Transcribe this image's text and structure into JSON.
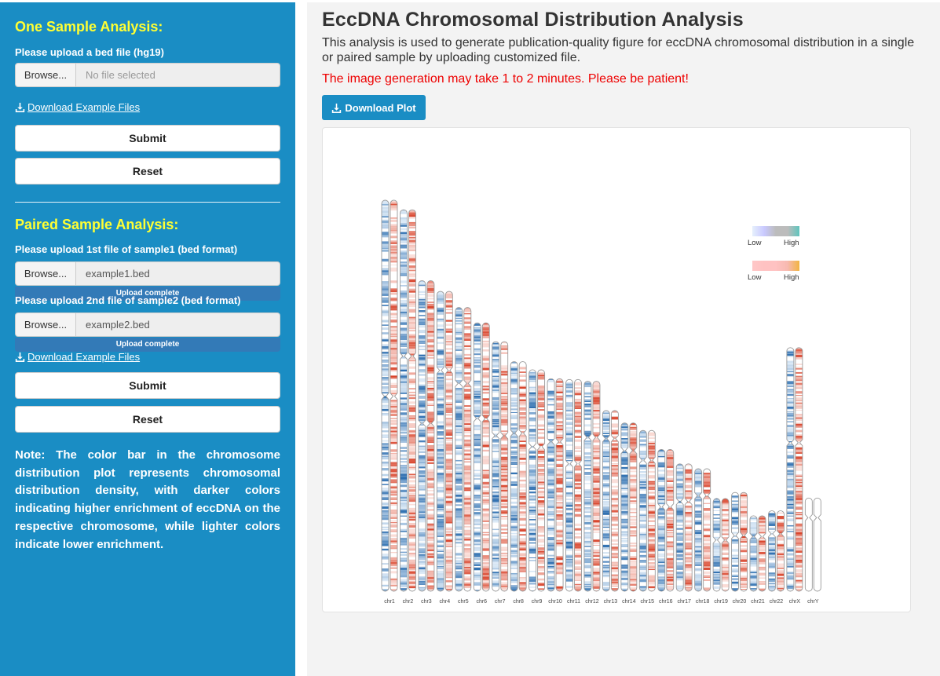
{
  "sidebar": {
    "one_sample_title": "One Sample Analysis:",
    "upload_bed_label": "Please upload a bed file (hg19)",
    "browse_label": "Browse...",
    "no_file_placeholder": "No file selected",
    "download_example_label": "Download Example Files",
    "submit_label": "Submit",
    "reset_label": "Reset",
    "paired_title": "Paired Sample Analysis:",
    "upload_file1_label": "Please upload 1st file of sample1 (bed format)",
    "file1_name": "example1.bed",
    "upload_status": "Upload complete",
    "upload_file2_label": "Please upload 2nd file of sample2 (bed format)",
    "file2_name": "example2.bed",
    "note": "Note: The color bar in the chromosome distribution plot represents chromosomal distribution density, with darker colors indicating higher enrichment of eccDNA on the respective chromosome, while lighter colors indicate lower enrichment."
  },
  "main": {
    "title": "EccDNA Chromosomal Distribution Analysis",
    "description": "This analysis is used to generate publication-quality figure for eccDNA chromosomal distribution in a single or paired sample by uploading customized file.",
    "warning": "The image generation may take 1 to 2 minutes. Please be patient!",
    "download_plot_label": "Download Plot"
  },
  "colors": {
    "sidebar_bg": "#1a8dc4",
    "sidebar_title": "#ffff33",
    "warning": "#ee0000",
    "sample1_low": "#dbe9f6",
    "sample1_high": "#2e6fb0",
    "sample2_low": "#fbe1dc",
    "sample2_high": "#d9442b"
  },
  "chart_data": {
    "type": "heatmap",
    "chromosomes": [
      "chr1",
      "chr2",
      "chr3",
      "chr4",
      "chr5",
      "chr6",
      "chr7",
      "chr8",
      "chr9",
      "chr10",
      "chr11",
      "chr12",
      "chr13",
      "chr14",
      "chr15",
      "chr16",
      "chr17",
      "chr18",
      "chr19",
      "chr20",
      "chr21",
      "chr22",
      "chrX",
      "chrY"
    ],
    "chromosome_length_mb": [
      249.3,
      243.2,
      198.0,
      191.2,
      180.9,
      171.1,
      159.1,
      146.4,
      141.2,
      135.5,
      135.0,
      133.9,
      115.2,
      107.3,
      102.5,
      90.4,
      81.2,
      78.1,
      59.1,
      63.0,
      48.1,
      51.3,
      155.3,
      59.4
    ],
    "centromere_mb": [
      125.0,
      93.3,
      91.0,
      50.4,
      48.4,
      61.0,
      59.9,
      45.6,
      49.0,
      40.2,
      53.7,
      35.8,
      17.9,
      17.6,
      19.0,
      36.6,
      24.0,
      17.2,
      26.5,
      27.5,
      13.2,
      14.7,
      60.6,
      12.5
    ],
    "legend": [
      {
        "low_label": "Low",
        "high_label": "High",
        "colors": [
          "#e6f0fc",
          "#c9c9ff",
          "#bcbcbc",
          "#bcbcbc",
          "#5fc5bd"
        ]
      },
      {
        "low_label": "Low",
        "high_label": "High",
        "colors": [
          "#ffc7c7",
          "#ffc2c2",
          "#ffc2c2",
          "#f7b9b0",
          "#f2b441"
        ]
      }
    ],
    "legend_placement": "top-right",
    "grid": false
  }
}
